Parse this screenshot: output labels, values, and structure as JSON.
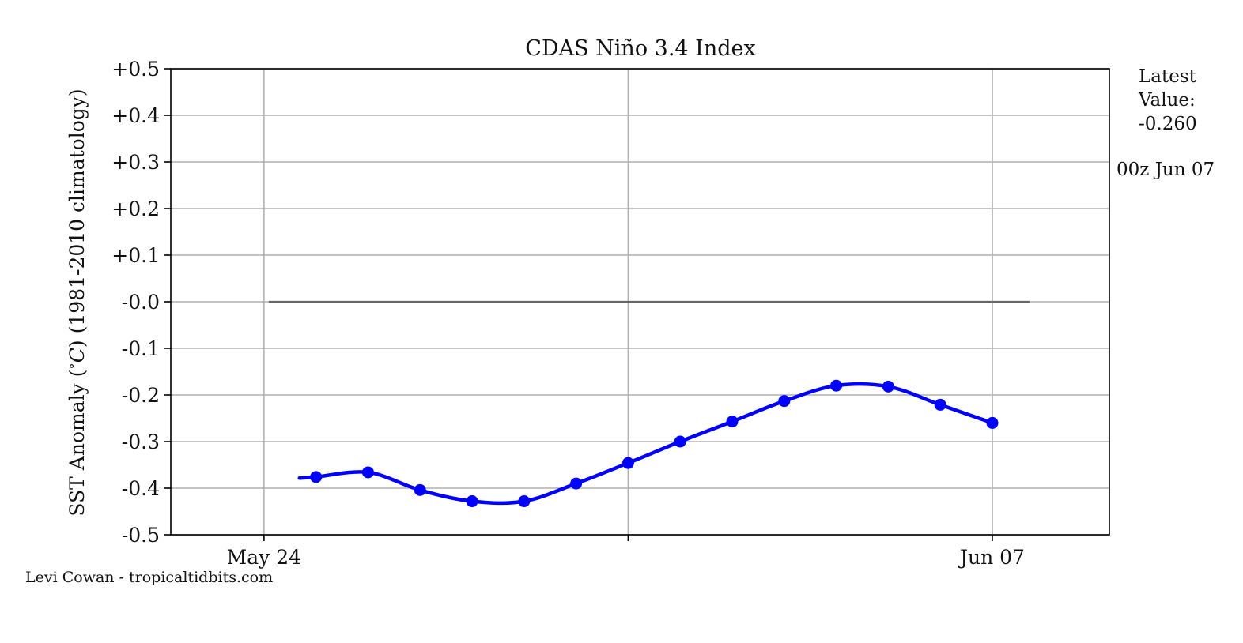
{
  "chart_data": {
    "type": "line",
    "title": "CDAS Niño 3.4 Index",
    "ylabel": "SST Anomaly ($^\\circ C$) (1981-2010 climatology)",
    "ylabel_parts": [
      "SST Anomaly (",
      "∘",
      "C",
      ") (1981-2010 climatology)"
    ],
    "ylim": [
      -0.5,
      0.5
    ],
    "yticks": [
      0.5,
      0.4,
      0.3,
      0.2,
      0.1,
      0.0,
      -0.1,
      -0.2,
      -0.3,
      -0.4,
      -0.5
    ],
    "ytick_labels": [
      "+0.5",
      "+0.4",
      "+0.3",
      "+0.2",
      "+0.1",
      "-0.0",
      "-0.1",
      "-0.2",
      "-0.3",
      "-0.4",
      "-0.5"
    ],
    "xlim": [
      "2023-05-22T05:00",
      "2023-06-09T06:00"
    ],
    "xticks": [
      "2023-05-24",
      "2023-05-31",
      "2023-06-07"
    ],
    "xtick_labels": [
      "May 24",
      "",
      "Jun 07"
    ],
    "grid": true,
    "series": [
      {
        "color": "#0000ff",
        "x": [
          "2023-05-25",
          "2023-05-26",
          "2023-05-27",
          "2023-05-28",
          "2023-05-29",
          "2023-05-30",
          "2023-05-31",
          "2023-06-01",
          "2023-06-02",
          "2023-06-03",
          "2023-06-04",
          "2023-06-05",
          "2023-06-06",
          "2023-06-07"
        ],
        "y": [
          -0.376,
          -0.366,
          -0.404,
          -0.428,
          -0.428,
          -0.39,
          -0.346,
          -0.3,
          -0.257,
          -0.213,
          -0.18,
          -0.182,
          -0.221,
          -0.26
        ]
      }
    ],
    "reference_line": {
      "y": 0.0,
      "color": "#666666"
    },
    "latest_value_lines": [
      "Latest",
      "Value:",
      "-0.260"
    ],
    "latest_time": "00z Jun 07",
    "credit": "Levi Cowan - tropicaltidbits.com"
  }
}
